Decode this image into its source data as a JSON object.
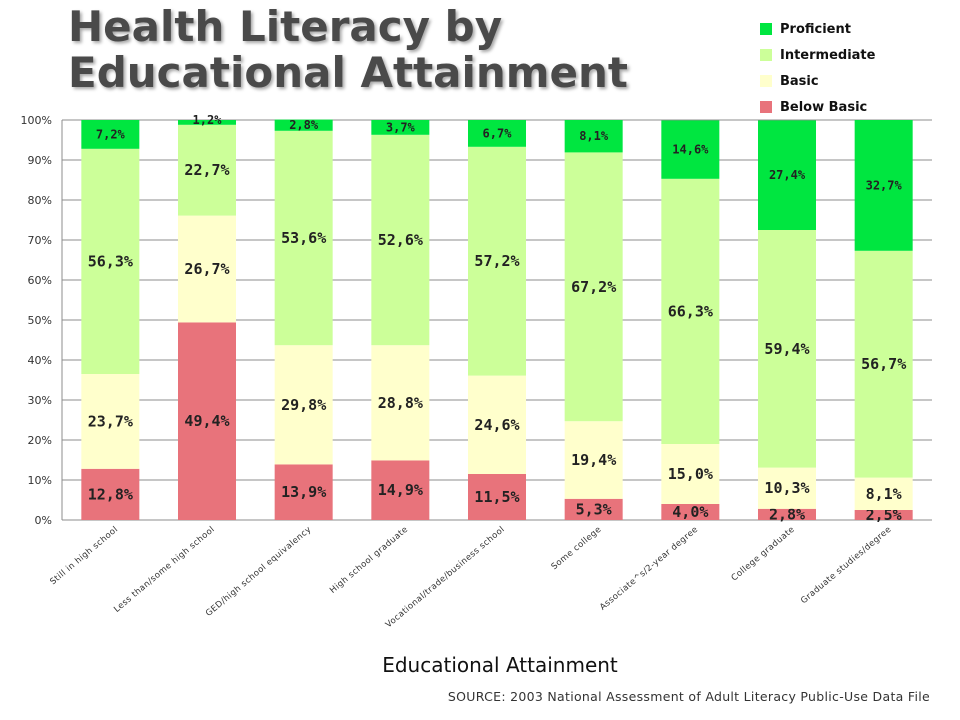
{
  "chart_data": {
    "type": "bar",
    "stacked": true,
    "title": "Health Literacy by Educational Attainment",
    "title_lines": [
      "Health Literacy by",
      "Educational Attainment"
    ],
    "xlabel": "Educational Attainment",
    "ylabel": "",
    "ylim": [
      0,
      100
    ],
    "yticks": [
      "0%",
      "10%",
      "20%",
      "30%",
      "40%",
      "50%",
      "60%",
      "70%",
      "80%",
      "90%",
      "100%"
    ],
    "grid": true,
    "legend_position": "top-right",
    "categories": [
      "Still in high school",
      "Less than/some high school",
      "GED/high school equivalency",
      "High school graduate",
      "Vocational/trade/business school",
      "Some college",
      "Associate^s/2-year degree",
      "College graduate",
      "Graduate studies/degree"
    ],
    "series": [
      {
        "name": "Below Basic",
        "color": "#e8737b",
        "values": [
          12.8,
          49.4,
          13.9,
          14.9,
          11.5,
          5.3,
          4.0,
          2.8,
          2.5
        ],
        "labels": [
          "12,8%",
          "49,4%",
          "13,9%",
          "14,9%",
          "11,5%",
          "5,3%",
          "4,0%",
          "2,8%",
          "2,5%"
        ]
      },
      {
        "name": "Basic",
        "color": "#ffffcc",
        "values": [
          23.7,
          26.7,
          29.8,
          28.8,
          24.6,
          19.4,
          15.0,
          10.3,
          8.1
        ],
        "labels": [
          "23,7%",
          "26,7%",
          "29,8%",
          "28,8%",
          "24,6%",
          "19,4%",
          "15,0%",
          "10,3%",
          "8,1%"
        ]
      },
      {
        "name": "Intermediate",
        "color": "#ccff99",
        "values": [
          56.3,
          22.7,
          53.6,
          52.6,
          57.2,
          67.2,
          66.3,
          59.4,
          56.7
        ],
        "labels": [
          "56,3%",
          "22,7%",
          "53,6%",
          "52,6%",
          "57,2%",
          "67,2%",
          "66,3%",
          "59,4%",
          "56,7%"
        ]
      },
      {
        "name": "Proficient",
        "color": "#00e640",
        "values": [
          7.2,
          1.2,
          2.8,
          3.7,
          6.7,
          8.1,
          14.6,
          27.4,
          32.7
        ],
        "labels": [
          "7,2%",
          "1,2%",
          "2,8%",
          "3,7%",
          "6,7%",
          "8,1%",
          "14,6%",
          "27,4%",
          "32,7%"
        ]
      }
    ],
    "legend_order": [
      "Proficient",
      "Intermediate",
      "Basic",
      "Below Basic"
    ],
    "source": "SOURCE: 2003 National Assessment of Adult Literacy Public-Use Data File"
  }
}
